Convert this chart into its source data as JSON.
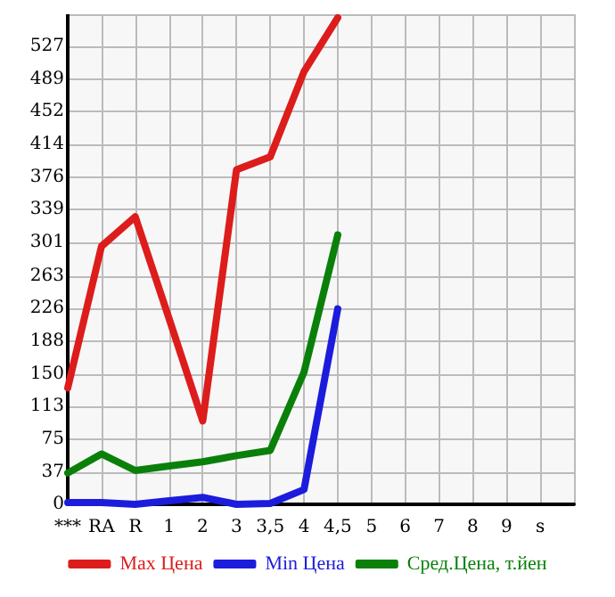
{
  "chart_data": {
    "type": "line",
    "categories": [
      "***",
      "RA",
      "R",
      "1",
      "2",
      "3",
      "3,5",
      "4",
      "4,5",
      "5",
      "6",
      "7",
      "8",
      "9",
      "s"
    ],
    "series": [
      {
        "name": "Max Цена",
        "color": "#dd1c1c",
        "values": [
          134,
          297,
          331,
          214,
          96,
          385,
          400,
          498,
          560,
          null,
          null,
          null,
          null,
          null,
          null
        ]
      },
      {
        "name": "Min Цена",
        "color": "#1c1cdd",
        "values": [
          2,
          2,
          0,
          4,
          8,
          0,
          1,
          17,
          225,
          null,
          null,
          null,
          null,
          null,
          null
        ]
      },
      {
        "name": "Сред.Цена, т.йен",
        "color": "#0a800a",
        "values": [
          36,
          58,
          39,
          44,
          49,
          56,
          62,
          152,
          310,
          null,
          null,
          null,
          null,
          null,
          null
        ]
      }
    ],
    "ylim": [
      0,
      564
    ],
    "yticks": [
      0,
      37,
      75,
      113,
      150,
      188,
      226,
      263,
      301,
      339,
      376,
      414,
      452,
      489,
      527,
      {
        "value": 564,
        "label": null
      }
    ],
    "grid": true,
    "legend": "bottom",
    "marker": "none",
    "line_style": "solid"
  }
}
